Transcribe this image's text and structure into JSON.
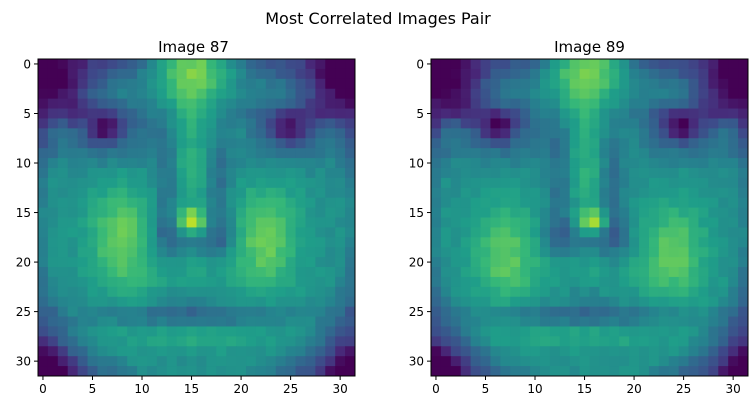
{
  "figure": {
    "suptitle": "Most Correlated Images Pair"
  },
  "colormap": {
    "name": "viridis",
    "stops": [
      "#440154",
      "#482878",
      "#3e4989",
      "#31688e",
      "#26828e",
      "#1f9e89",
      "#35b779",
      "#6ece58",
      "#b5de2b",
      "#fde725"
    ]
  },
  "chart_data": [
    {
      "type": "heatmap",
      "title": "Image 87",
      "xlim": [
        -0.5,
        31.5
      ],
      "ylim": [
        31.5,
        -0.5
      ],
      "xticks": [
        0,
        5,
        10,
        15,
        20,
        25,
        30
      ],
      "yticks": [
        0,
        5,
        10,
        15,
        20,
        25,
        30
      ],
      "grid": false,
      "rows": 32,
      "cols": 32,
      "scale": [
        0,
        1
      ],
      "features": {
        "eye_left_x": 6.2,
        "eye_right_x": 24.8,
        "eye_y": 6.6,
        "cheek_left_x": 8.0,
        "cheek_right_x": 22.5,
        "cheek_y": 17.5,
        "cheek_strength": 0.28,
        "nose_tip_x": 15.0,
        "nose_tip_y": 15.8,
        "forehead_peak_x": 15.0
      }
    },
    {
      "type": "heatmap",
      "title": "Image 89",
      "xlim": [
        -0.5,
        31.5
      ],
      "ylim": [
        31.5,
        -0.5
      ],
      "xticks": [
        0,
        5,
        10,
        15,
        20,
        25,
        30
      ],
      "yticks": [
        0,
        5,
        10,
        15,
        20,
        25,
        30
      ],
      "grid": false,
      "rows": 32,
      "cols": 32,
      "scale": [
        0,
        1
      ],
      "features": {
        "eye_left_x": 6.3,
        "eye_right_x": 24.8,
        "eye_y": 6.4,
        "cheek_left_x": 7.0,
        "cheek_right_x": 24.0,
        "cheek_y": 19.0,
        "cheek_strength": 0.25,
        "nose_tip_x": 16.0,
        "nose_tip_y": 15.8,
        "forehead_peak_x": 15.2
      }
    }
  ]
}
